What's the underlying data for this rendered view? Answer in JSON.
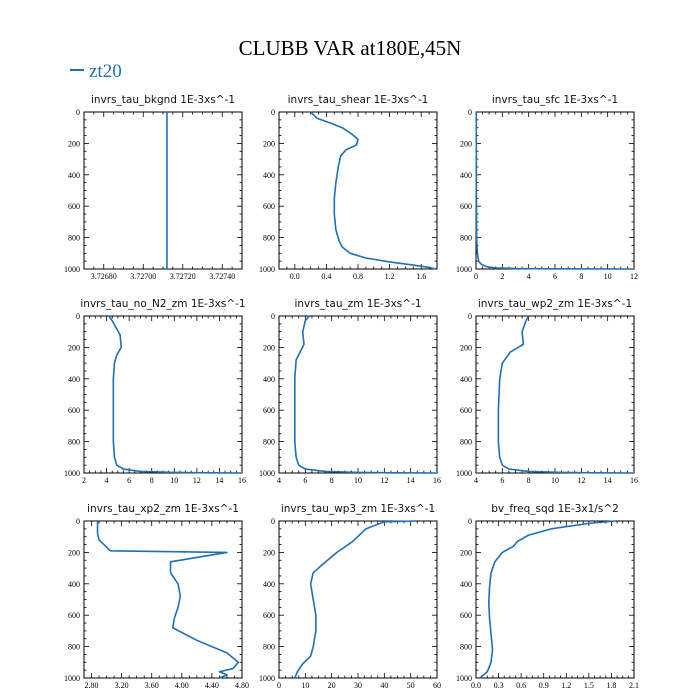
{
  "title": "CLUBB VAR at180E,45N",
  "legend": {
    "label": "zt20",
    "color": "#1f6fb4"
  },
  "chart_data": [
    {
      "type": "line",
      "title": "invrs_tau_bkgnd   1E-3xs^-1",
      "xlim": [
        3.7267,
        3.7275
      ],
      "xticks": [
        3.7268,
        3.727,
        3.7272,
        3.7274
      ],
      "xtick_labels": [
        "3.72680",
        "3.72700",
        "3.72720",
        "3.72740"
      ],
      "ylim": [
        0,
        1000
      ],
      "yticks": [
        0,
        200,
        400,
        600,
        800,
        1000
      ],
      "ytick_labels": [
        "0",
        "200",
        "400",
        "600",
        "800",
        "1000"
      ],
      "series": [
        {
          "x": [
            3.72712,
            3.72712
          ],
          "y": [
            0,
            1000
          ]
        }
      ]
    },
    {
      "type": "line",
      "title": "invrs_tau_shear   1E-3xs^-1",
      "xlim": [
        -0.2,
        1.8
      ],
      "xticks": [
        0,
        0.4,
        0.8,
        1.2,
        1.6
      ],
      "xtick_labels": [
        "0.0",
        "0.4",
        "0.8",
        "1.2",
        "1.6"
      ],
      "ylim": [
        0,
        1000
      ],
      "yticks": [
        0,
        200,
        400,
        600,
        800,
        1000
      ],
      "ytick_labels": [
        "0",
        "200",
        "400",
        "600",
        "800",
        "1000"
      ],
      "series": [
        {
          "x": [
            0.2,
            0.28,
            0.45,
            0.6,
            0.72,
            0.8,
            0.78,
            0.65,
            0.58,
            0.55,
            0.52,
            0.5,
            0.5,
            0.52,
            0.56,
            0.6,
            0.7,
            0.9,
            1.2,
            1.5,
            1.7,
            1.78
          ],
          "y": [
            0,
            40,
            70,
            100,
            140,
            175,
            210,
            240,
            280,
            350,
            450,
            550,
            650,
            750,
            820,
            860,
            900,
            930,
            955,
            975,
            990,
            1000
          ]
        }
      ]
    },
    {
      "type": "line",
      "title": "invrs_tau_sfc   1E-3xs^-1",
      "xlim": [
        0,
        12
      ],
      "xticks": [
        0,
        2,
        4,
        6,
        8,
        10,
        12
      ],
      "xtick_labels": [
        "0",
        "2",
        "4",
        "6",
        "8",
        "10",
        "12"
      ],
      "ylim": [
        0,
        1000
      ],
      "yticks": [
        0,
        200,
        400,
        600,
        800,
        1000
      ],
      "ytick_labels": [
        "0",
        "200",
        "400",
        "600",
        "800",
        "1000"
      ],
      "series": [
        {
          "x": [
            0.02,
            0.03,
            0.05,
            0.1,
            0.2,
            0.4,
            0.8,
            1.5,
            3,
            6,
            12
          ],
          "y": [
            0,
            500,
            800,
            900,
            950,
            970,
            985,
            993,
            997,
            999,
            1000
          ]
        }
      ]
    },
    {
      "type": "line",
      "title": "invrs_tau_no_N2_zm   1E-3xs^-1",
      "xlim": [
        2,
        16
      ],
      "xticks": [
        2,
        4,
        6,
        8,
        10,
        12,
        14,
        16
      ],
      "xtick_labels": [
        "2",
        "4",
        "6",
        "8",
        "10",
        "12",
        "14",
        "16"
      ],
      "ylim": [
        0,
        1000
      ],
      "yticks": [
        0,
        200,
        400,
        600,
        800,
        1000
      ],
      "ytick_labels": [
        "0",
        "200",
        "400",
        "600",
        "800",
        "1000"
      ],
      "series": [
        {
          "x": [
            4.2,
            4.5,
            5.2,
            5.3,
            4.9,
            4.7,
            4.6,
            4.6,
            4.6,
            4.7,
            4.9,
            5.5,
            7,
            10,
            13,
            16
          ],
          "y": [
            0,
            30,
            120,
            200,
            250,
            300,
            400,
            600,
            800,
            900,
            950,
            975,
            990,
            996,
            999,
            1000
          ]
        }
      ]
    },
    {
      "type": "line",
      "title": "invrs_tau_zm   1E-3xs^-1",
      "xlim": [
        4,
        16
      ],
      "xticks": [
        4,
        6,
        8,
        10,
        12,
        14,
        16
      ],
      "xtick_labels": [
        "4",
        "6",
        "8",
        "10",
        "12",
        "14",
        "16"
      ],
      "ylim": [
        0,
        1000
      ],
      "yticks": [
        0,
        200,
        400,
        600,
        800,
        1000
      ],
      "ytick_labels": [
        "0",
        "200",
        "400",
        "600",
        "800",
        "1000"
      ],
      "series": [
        {
          "x": [
            6.3,
            6.0,
            5.8,
            5.9,
            5.6,
            5.3,
            5.2,
            5.2,
            5.2,
            5.3,
            5.5,
            6,
            7.5,
            10,
            13,
            16
          ],
          "y": [
            0,
            30,
            100,
            180,
            230,
            280,
            400,
            600,
            800,
            900,
            950,
            975,
            990,
            996,
            999,
            1000
          ]
        }
      ]
    },
    {
      "type": "line",
      "title": "invrs_tau_wp2_zm   1E-3xs^-1",
      "xlim": [
        4,
        16
      ],
      "xticks": [
        4,
        6,
        8,
        10,
        12,
        14,
        16
      ],
      "xtick_labels": [
        "4",
        "6",
        "8",
        "10",
        "12",
        "14",
        "16"
      ],
      "ylim": [
        0,
        1000
      ],
      "yticks": [
        0,
        200,
        400,
        600,
        800,
        1000
      ],
      "ytick_labels": [
        "0",
        "200",
        "400",
        "600",
        "800",
        "1000"
      ],
      "series": [
        {
          "x": [
            8.0,
            7.8,
            7.5,
            7.6,
            6.6,
            6.0,
            5.8,
            5.7,
            5.7,
            5.8,
            6.0,
            6.5,
            8,
            10.5,
            13,
            16
          ],
          "y": [
            0,
            30,
            100,
            180,
            230,
            300,
            400,
            600,
            800,
            900,
            950,
            975,
            990,
            996,
            999,
            1000
          ]
        }
      ]
    },
    {
      "type": "line",
      "title": "invrs_tau_xp2_zm   1E-3xs^-1",
      "xlim": [
        2.7,
        4.8
      ],
      "xticks": [
        2.8,
        3.2,
        3.6,
        4.0,
        4.4,
        4.8
      ],
      "xtick_labels": [
        "2.80",
        "3.20",
        "3.60",
        "4.00",
        "4.40",
        "4.80"
      ],
      "ylim": [
        0,
        1000
      ],
      "yticks": [
        0,
        200,
        400,
        600,
        800,
        1000
      ],
      "ytick_labels": [
        "0",
        "200",
        "400",
        "600",
        "800",
        "1000"
      ],
      "series": [
        {
          "x": [
            2.88,
            2.88,
            2.9,
            3.05,
            4.6,
            3.85,
            3.85,
            3.95,
            3.98,
            3.95,
            3.9,
            3.88,
            4.2,
            4.6,
            4.75,
            4.68,
            4.5,
            4.6,
            4.5
          ],
          "y": [
            0,
            80,
            120,
            190,
            200,
            260,
            330,
            400,
            480,
            550,
            620,
            680,
            760,
            840,
            900,
            940,
            960,
            980,
            1000
          ]
        }
      ]
    },
    {
      "type": "line",
      "title": "invrs_tau_wp3_zm   1E-3xs^-1",
      "xlim": [
        0,
        60
      ],
      "xticks": [
        0,
        10,
        20,
        30,
        40,
        50,
        60
      ],
      "xtick_labels": [
        "0",
        "10",
        "20",
        "30",
        "40",
        "50",
        "60"
      ],
      "ylim": [
        0,
        1000
      ],
      "yticks": [
        0,
        200,
        400,
        600,
        800,
        1000
      ],
      "ytick_labels": [
        "0",
        "200",
        "400",
        "600",
        "800",
        "1000"
      ],
      "series": [
        {
          "x": [
            52,
            40,
            33,
            28,
            22,
            17,
            13,
            12,
            13,
            14,
            14,
            13,
            12,
            9,
            7,
            6
          ],
          "y": [
            0,
            5,
            50,
            130,
            200,
            270,
            330,
            400,
            500,
            600,
            700,
            800,
            860,
            910,
            960,
            1000
          ]
        }
      ]
    },
    {
      "type": "line",
      "title": "bv_freq_sqd   1E-3x1/s^2",
      "xlim": [
        0,
        2.1
      ],
      "xticks": [
        0,
        0.3,
        0.6,
        0.9,
        1.2,
        1.5,
        1.8,
        2.1
      ],
      "xtick_labels": [
        "0.0",
        "0.3",
        "0.6",
        "0.9",
        "1.2",
        "1.5",
        "1.8",
        "2.1"
      ],
      "ylim": [
        0,
        1000
      ],
      "yticks": [
        0,
        200,
        400,
        600,
        800,
        1000
      ],
      "ytick_labels": [
        "0",
        "200",
        "400",
        "600",
        "800",
        "1000"
      ],
      "series": [
        {
          "x": [
            1.85,
            1.5,
            1.0,
            0.7,
            0.55,
            0.5,
            0.35,
            0.25,
            0.2,
            0.18,
            0.17,
            0.18,
            0.2,
            0.22,
            0.2,
            0.15,
            0.05
          ],
          "y": [
            0,
            15,
            50,
            90,
            130,
            160,
            200,
            260,
            330,
            420,
            520,
            620,
            720,
            820,
            900,
            960,
            1000
          ]
        }
      ]
    }
  ]
}
